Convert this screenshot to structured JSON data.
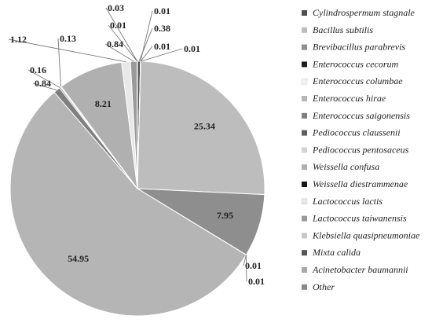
{
  "chart_data": {
    "type": "pie",
    "title": "",
    "legend_position": "right",
    "slices": [
      {
        "name": "Cylindrospermum stagnale",
        "value": 0.03,
        "label": "0.03",
        "color": "#4f4f4f"
      },
      {
        "name": "Bacillus subtilis",
        "value": 25.34,
        "label": "25.34",
        "color": "#bdbdbd"
      },
      {
        "name": "Brevibacillus parabrevis",
        "value": 7.95,
        "label": "7.95",
        "color": "#8e8e8e"
      },
      {
        "name": "Enterococcus cecorum",
        "value": 0.01,
        "label": "0.01",
        "color": "#1c1c1c"
      },
      {
        "name": "Enterococcus columbae",
        "value": 0.01,
        "label": "0.01",
        "color": "#f2f2f2"
      },
      {
        "name": "Enterococcus hirae",
        "value": 54.95,
        "label": "54.95",
        "color": "#b5b5b5"
      },
      {
        "name": "Enterococcus saigonensis",
        "value": 0.84,
        "label": "0.84",
        "color": "#7f7f7f"
      },
      {
        "name": "Pediococcus claussenii",
        "value": 0.16,
        "label": "0.16",
        "color": "#5e5e5e"
      },
      {
        "name": "Pediococcus pentosaceus",
        "value": 0.13,
        "label": "0.13",
        "color": "#d4d4d4"
      },
      {
        "name": "Weissella confusa",
        "value": 8.21,
        "label": "8.21",
        "color": "#b0b0b0"
      },
      {
        "name": "Weissella diestrammenae",
        "value": 0.01,
        "label": "0.01",
        "color": "#161616"
      },
      {
        "name": "Lactococcus lactis",
        "value": 1.12,
        "label": "1.12",
        "color": "#e8e8e8"
      },
      {
        "name": "Lactococcus taiwanensis",
        "value": 0.84,
        "label": "0.84",
        "color": "#9a9a9a"
      },
      {
        "name": "Klebsiella quasipneumoniae",
        "value": 0.01,
        "label": "0.01",
        "color": "#c8c8c8"
      },
      {
        "name": "Mixta calida",
        "value": 0.38,
        "label": "0.38",
        "color": "#555555"
      },
      {
        "name": "Acinetobacter baumannii",
        "value": 0.01,
        "label": "0.01",
        "color": "#a8a8a8"
      },
      {
        "name": "Other",
        "value": 0.01,
        "label": "0.01",
        "color": "#8a8a8a"
      }
    ],
    "slice_order_clockwise_from_top": [
      "Mixta calida",
      "Klebsiella quasipneumoniae",
      "Acinetobacter baumannii",
      "Other",
      "Bacillus subtilis",
      "Brevibacillus parabrevis",
      "Enterococcus cecorum",
      "Enterococcus columbae",
      "Enterococcus hirae",
      "Enterococcus saigonensis",
      "Pediococcus claussenii",
      "Pediococcus pentosaceus",
      "Weissella confusa",
      "Lactococcus lactis",
      "Lactococcus taiwanensis",
      "Weissella diestrammenae",
      "Cylindrospermum stagnale"
    ]
  }
}
